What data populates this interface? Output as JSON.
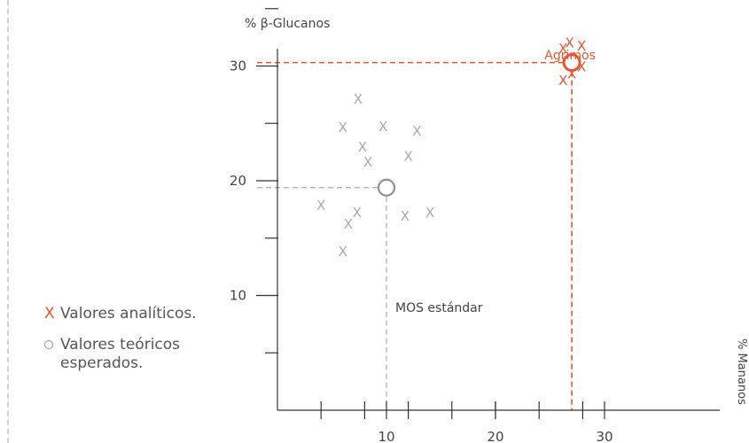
{
  "chart_data": {
    "type": "scatter",
    "ylabel": "% β-Glucanos",
    "xlabel": "% Mananos",
    "xlim": [
      0,
      31
    ],
    "ylim": [
      0,
      37
    ],
    "x_ticks": [
      10,
      20,
      30
    ],
    "y_ticks": [
      10,
      20,
      30
    ],
    "grid": false,
    "legend_position": "left",
    "series": [
      {
        "name": "Valores analíticos.",
        "marker": "x",
        "points": [
          {
            "x": 4.0,
            "y": 17.9
          },
          {
            "x": 6.0,
            "y": 13.9
          },
          {
            "x": 6.0,
            "y": 24.7
          },
          {
            "x": 6.5,
            "y": 16.3
          },
          {
            "x": 7.3,
            "y": 17.3
          },
          {
            "x": 7.4,
            "y": 27.2
          },
          {
            "x": 7.8,
            "y": 23.0
          },
          {
            "x": 8.3,
            "y": 21.7
          },
          {
            "x": 9.7,
            "y": 24.8
          },
          {
            "x": 11.7,
            "y": 17.0
          },
          {
            "x": 12.0,
            "y": 22.2
          },
          {
            "x": 12.8,
            "y": 24.4
          },
          {
            "x": 14.0,
            "y": 17.3
          }
        ],
        "color": "#a9a9a9"
      },
      {
        "name": "Agrimos",
        "marker": "x",
        "points": [
          {
            "x": 26.2,
            "y": 31.6
          },
          {
            "x": 26.2,
            "y": 28.8
          },
          {
            "x": 26.8,
            "y": 32.1
          },
          {
            "x": 27.0,
            "y": 29.4
          },
          {
            "x": 27.9,
            "y": 31.8
          },
          {
            "x": 27.9,
            "y": 30.0
          }
        ],
        "color": "#e8562e"
      },
      {
        "name": "Valores teóricos esperados.",
        "marker": "o",
        "points": [
          {
            "x": 10.0,
            "y": 19.4,
            "label": "MOS estándar"
          },
          {
            "x": 27.0,
            "y": 30.3,
            "label": "Agrimos"
          }
        ]
      }
    ],
    "reference_lines": [
      {
        "point": "MOS estándar",
        "x": 10.0,
        "y": 19.4,
        "color": "#a9a9a9"
      },
      {
        "point": "Agrimos",
        "x": 27.0,
        "y": 30.3,
        "color": "#e8562e"
      }
    ]
  },
  "legend": {
    "analytic_marker": "X",
    "analytic_label": "Valores analíticos.",
    "theoretical_label": "Valores teóricos esperados."
  },
  "colors": {
    "orange": "#e8562e",
    "grey": "#a9a9a9",
    "axis": "#333333",
    "text": "#444444"
  }
}
